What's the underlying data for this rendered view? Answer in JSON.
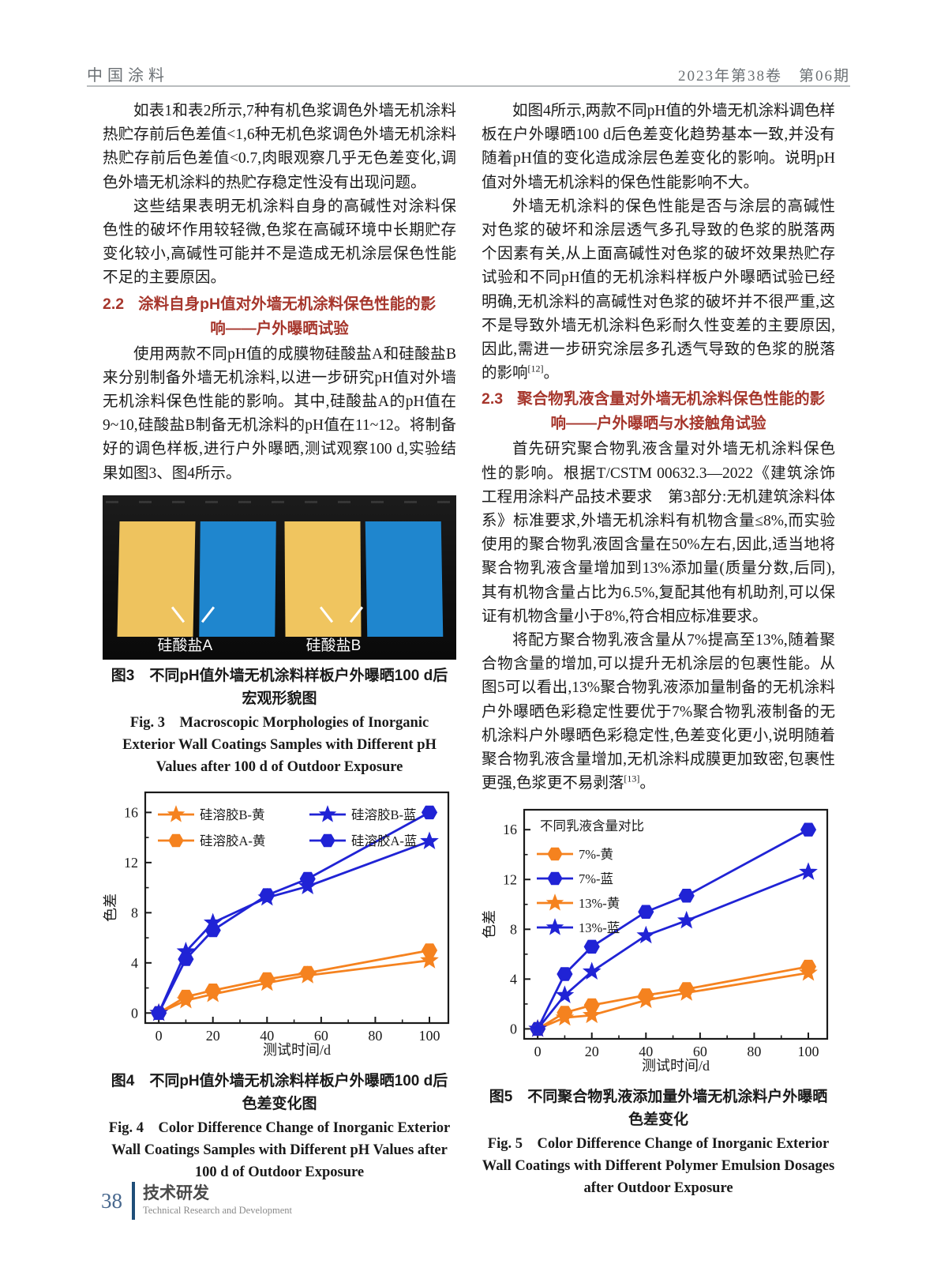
{
  "header": {
    "journal": "中国涂料",
    "issue": "2023年第38卷　第06期"
  },
  "left_column": {
    "p1": "如表1和表2所示,7种有机色浆调色外墙无机涂料热贮存前后色差值<1,6种无机色浆调色外墙无机涂料热贮存前后色差值<0.7,肉眼观察几乎无色差变化,调色外墙无机涂料的热贮存稳定性没有出现问题。",
    "p2": "这些结果表明无机涂料自身的高碱性对涂料保色性的破坏作用较轻微,色浆在高碱环境中长期贮存变化较小,高碱性可能并不是造成无机涂层保色性能不足的主要原因。",
    "section_2_2": {
      "num": "2.2",
      "line1": "涂料自身pH值对外墙无机涂料保色性能的影",
      "line2": "响——户外曝晒试验"
    },
    "p3": "使用两款不同pH值的成膜物硅酸盐A和硅酸盐B来分别制备外墙无机涂料,以进一步研究pH值对外墙无机涂料保色性能的影响。其中,硅酸盐A的pH值在9~10,硅酸盐B制备无机涂料的pH值在11~12。将制备好的调色样板,进行户外曝晒,测试观察100 d,实验结果如图3、图4所示。"
  },
  "right_column": {
    "p1": "如图4所示,两款不同pH值的外墙无机涂料调色样板在户外曝晒100 d后色差变化趋势基本一致,并没有随着pH值的变化造成涂层色差变化的影响。说明pH值对外墙无机涂料的保色性能影响不大。",
    "p2a": "外墙无机涂料的保色性能是否与涂层的高碱性对色浆的破坏和涂层透气多孔导致的色浆的脱落两个因素有关,从上面高碱性对色浆的破坏效果热贮存试验和不同pH值的无机涂料样板户外曝晒试验已经明确,无机涂料的高碱性对色浆的破坏并不很严重,这不是导致外墙无机涂料色彩耐久性变差的主要原因,因此,需进一步研究涂层多孔透气导致的色浆的脱落的影响",
    "p2_ref": "[12]",
    "p2b": "。",
    "section_2_3": {
      "num": "2.3",
      "line1": "聚合物乳液含量对外墙无机涂料保色性能的影",
      "line2": "响——户外曝晒与水接触角试验"
    },
    "p3": "首先研究聚合物乳液含量对外墙无机涂料保色性的影响。根据T/CSTM 00632.3—2022《建筑涂饰工程用涂料产品技术要求　第3部分:无机建筑涂料体系》标准要求,外墙无机涂料有机物含量≤8%,而实验使用的聚合物乳液固含量在50%左右,因此,适当地将聚合物乳液含量增加到13%添加量(质量分数,后同),其有机物含量占比为6.5%,复配其他有机助剂,可以保证有机物含量小于8%,符合相应标准要求。",
    "p4a": "将配方聚合物乳液含量从7%提高至13%,随着聚合物含量的增加,可以提升无机涂层的包裹性能。从图5可以看出,13%聚合物乳液添加量制备的无机涂料户外曝晒色彩稳定性要优于7%聚合物乳液制备的无机涂料户外曝晒色彩稳定性,色差变化更小,说明随着聚合物乳液含量增加,无机涂料成膜更加致密,包裹性更强,色浆更不易剥落",
    "p4_ref": "[13]",
    "p4b": "。"
  },
  "figure3": {
    "label_a": "硅酸盐A",
    "label_b": "硅酸盐B",
    "caption_cn": "图3　不同pH值外墙无机涂料样板户外曝晒100 d后宏观形貌图",
    "caption_en": "Fig. 3　Macroscopic Morphologies of Inorganic Exterior Wall Coatings Samples with Different pH Values after 100 d of Outdoor Exposure",
    "panel_yellow": "#eec35e",
    "panel_blue": "#1f86ce"
  },
  "figure4": {
    "caption_cn": "图4　不同pH值外墙无机涂料样板户外曝晒100 d后色差变化图",
    "caption_en": "Fig. 4　Color Difference Change of Inorganic Exterior Wall Coatings Samples with Different pH Values after 100 d of Outdoor Exposure"
  },
  "figure5": {
    "caption_cn": "图5　不同聚合物乳液添加量外墙无机涂料户外曝晒色差变化",
    "caption_en": "Fig. 5　Color Difference Change of Inorganic Exterior Wall Coatings with Different Polymer Emulsion Dosages after Outdoor Exposure"
  },
  "chart_data": [
    {
      "type": "line",
      "title": "",
      "xlabel": "测试时间/d",
      "ylabel": "色差",
      "xlim": [
        0,
        100
      ],
      "ylim": [
        0,
        16
      ],
      "xticks": [
        0,
        20,
        40,
        60,
        80,
        100
      ],
      "xticks_minor": [
        10,
        30,
        50,
        70,
        90
      ],
      "yticks": [
        0,
        4,
        8,
        12,
        16
      ],
      "yticks_minor": [
        2,
        6,
        10,
        14
      ],
      "grid": false,
      "x": [
        0,
        10,
        20,
        40,
        55,
        100
      ],
      "series": [
        {
          "name": "硅溶胶B-黄",
          "color": "#f5821f",
          "marker": "star",
          "values": [
            0,
            1.0,
            1.5,
            2.4,
            3.0,
            4.2
          ]
        },
        {
          "name": "硅溶胶A-黄",
          "color": "#f5821f",
          "marker": "hexagon",
          "values": [
            0,
            1.3,
            1.8,
            2.7,
            3.2,
            5.0
          ]
        },
        {
          "name": "硅溶胶B-蓝",
          "color": "#2023d5",
          "marker": "star",
          "values": [
            0,
            4.9,
            7.2,
            9.2,
            10.1,
            13.7
          ]
        },
        {
          "name": "硅溶胶A-蓝",
          "color": "#2023d5",
          "marker": "hexagon",
          "values": [
            0,
            4.3,
            6.6,
            9.4,
            10.7,
            16.0
          ]
        }
      ],
      "legend": {
        "position": "top-left",
        "columns": 2,
        "order": [
          0,
          2,
          1,
          3
        ]
      }
    },
    {
      "type": "line",
      "title": "",
      "xlabel": "测试时间/d",
      "ylabel": "色差",
      "xlim": [
        0,
        100
      ],
      "ylim": [
        0,
        16
      ],
      "xticks": [
        0,
        20,
        40,
        60,
        80,
        100
      ],
      "xticks_minor": [
        10,
        30,
        50,
        70,
        90
      ],
      "yticks": [
        0,
        4,
        8,
        12,
        16
      ],
      "yticks_minor": [
        2,
        6,
        10,
        14
      ],
      "grid": false,
      "x": [
        0,
        10,
        20,
        40,
        55,
        100
      ],
      "series": [
        {
          "name": "7%-黄",
          "color": "#f5821f",
          "marker": "hexagon",
          "values": [
            0,
            1.3,
            1.9,
            2.7,
            3.2,
            5.0
          ]
        },
        {
          "name": "7%-蓝",
          "color": "#2023d5",
          "marker": "hexagon",
          "values": [
            0,
            4.4,
            6.6,
            9.4,
            10.7,
            16.0
          ]
        },
        {
          "name": "13%-黄",
          "color": "#f5821f",
          "marker": "star",
          "values": [
            0,
            0.9,
            1.1,
            2.3,
            2.9,
            4.5
          ]
        },
        {
          "name": "13%-蓝",
          "color": "#2023d5",
          "marker": "star",
          "values": [
            0,
            2.7,
            4.6,
            7.5,
            8.7,
            12.6
          ]
        }
      ],
      "legend": {
        "position": "top-left",
        "columns": 1,
        "title": "不同乳液含量对比",
        "order": [
          0,
          1,
          2,
          3
        ]
      }
    }
  ],
  "footer": {
    "page": "38",
    "section_cn": "技术研发",
    "section_en": "Technical Research and Development"
  }
}
